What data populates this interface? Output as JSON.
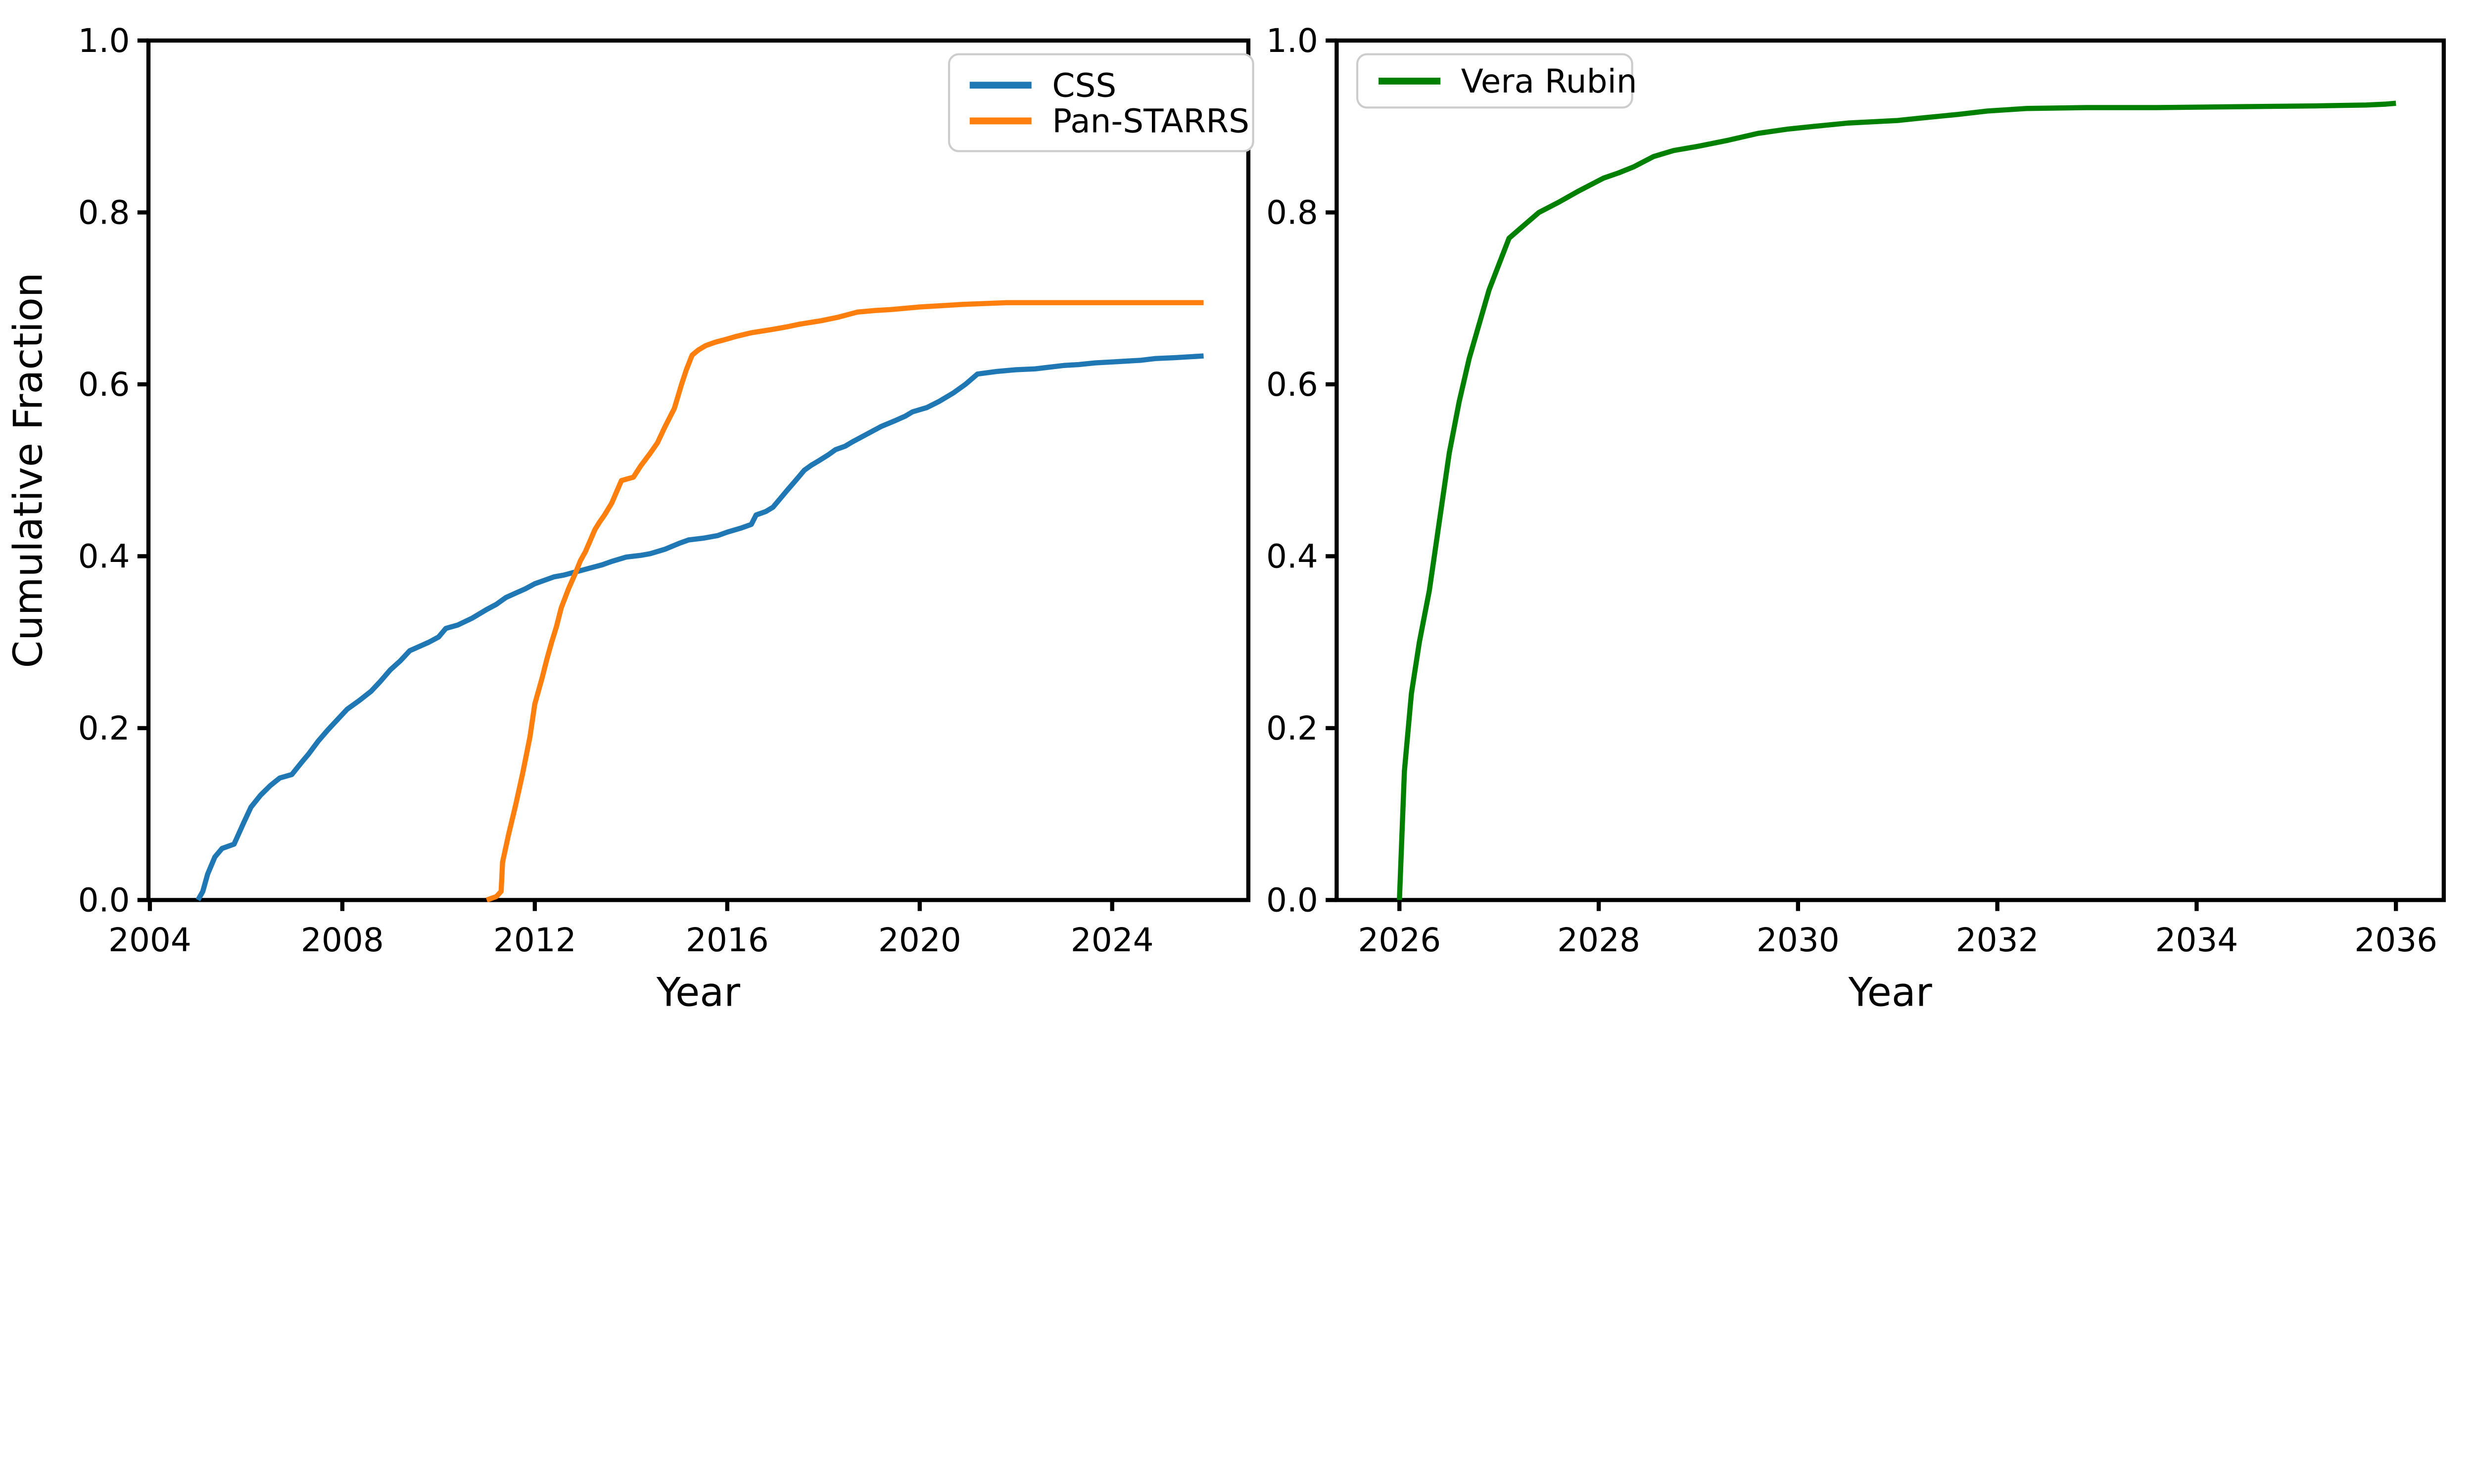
{
  "figure": {
    "background": "#ffffff",
    "description": "Two-panel cumulative fraction versus year line chart"
  },
  "chart_data": [
    {
      "type": "line",
      "panel": "left",
      "title": "",
      "xlabel": "Year",
      "ylabel": "Cumulative Fraction",
      "xlim": [
        2003.97,
        2026.83
      ],
      "ylim": [
        0.0,
        1.0
      ],
      "x_ticks": [
        2004,
        2008,
        2012,
        2016,
        2020,
        2024
      ],
      "y_ticks": [
        0.0,
        0.2,
        0.4,
        0.6,
        0.8,
        1.0
      ],
      "y_tick_labels": [
        "0.0",
        "0.2",
        "0.4",
        "0.6",
        "0.8",
        "1.0"
      ],
      "grid": false,
      "legend": {
        "position": "upper right",
        "entries": [
          {
            "label": "CSS",
            "color": "#1f77b4"
          },
          {
            "label": "Pan-STARRS",
            "color": "#ff7f0e"
          }
        ]
      },
      "series": [
        {
          "name": "CSS",
          "color": "#1f77b4",
          "points": [
            [
              2005.0,
              0.0
            ],
            [
              2005.1,
              0.01
            ],
            [
              2005.2,
              0.03
            ],
            [
              2005.35,
              0.05
            ],
            [
              2005.5,
              0.06
            ],
            [
              2005.75,
              0.065
            ],
            [
              2005.95,
              0.09
            ],
            [
              2006.1,
              0.108
            ],
            [
              2006.3,
              0.122
            ],
            [
              2006.5,
              0.133
            ],
            [
              2006.7,
              0.142
            ],
            [
              2006.95,
              0.146
            ],
            [
              2007.15,
              0.16
            ],
            [
              2007.3,
              0.17
            ],
            [
              2007.5,
              0.185
            ],
            [
              2007.7,
              0.198
            ],
            [
              2007.9,
              0.21
            ],
            [
              2008.1,
              0.222
            ],
            [
              2008.35,
              0.232
            ],
            [
              2008.6,
              0.243
            ],
            [
              2008.8,
              0.255
            ],
            [
              2009.0,
              0.268
            ],
            [
              2009.2,
              0.278
            ],
            [
              2009.4,
              0.29
            ],
            [
              2009.6,
              0.295
            ],
            [
              2009.8,
              0.3
            ],
            [
              2010.0,
              0.306
            ],
            [
              2010.15,
              0.316
            ],
            [
              2010.4,
              0.32
            ],
            [
              2010.7,
              0.328
            ],
            [
              2011.0,
              0.338
            ],
            [
              2011.2,
              0.344
            ],
            [
              2011.4,
              0.352
            ],
            [
              2011.6,
              0.357
            ],
            [
              2011.8,
              0.362
            ],
            [
              2012.0,
              0.368
            ],
            [
              2012.2,
              0.372
            ],
            [
              2012.4,
              0.376
            ],
            [
              2012.6,
              0.378
            ],
            [
              2012.8,
              0.381
            ],
            [
              2013.0,
              0.384
            ],
            [
              2013.2,
              0.387
            ],
            [
              2013.4,
              0.39
            ],
            [
              2013.6,
              0.394
            ],
            [
              2013.9,
              0.399
            ],
            [
              2014.2,
              0.401
            ],
            [
              2014.4,
              0.403
            ],
            [
              2014.7,
              0.408
            ],
            [
              2015.0,
              0.415
            ],
            [
              2015.2,
              0.419
            ],
            [
              2015.5,
              0.421
            ],
            [
              2015.8,
              0.424
            ],
            [
              2016.0,
              0.428
            ],
            [
              2016.3,
              0.433
            ],
            [
              2016.5,
              0.437
            ],
            [
              2016.6,
              0.448
            ],
            [
              2016.8,
              0.452
            ],
            [
              2016.95,
              0.457
            ],
            [
              2017.1,
              0.467
            ],
            [
              2017.25,
              0.477
            ],
            [
              2017.45,
              0.49
            ],
            [
              2017.6,
              0.5
            ],
            [
              2017.75,
              0.506
            ],
            [
              2017.9,
              0.511
            ],
            [
              2018.1,
              0.518
            ],
            [
              2018.25,
              0.524
            ],
            [
              2018.45,
              0.528
            ],
            [
              2018.6,
              0.533
            ],
            [
              2018.9,
              0.542
            ],
            [
              2019.2,
              0.551
            ],
            [
              2019.5,
              0.558
            ],
            [
              2019.7,
              0.563
            ],
            [
              2019.85,
              0.568
            ],
            [
              2020.15,
              0.573
            ],
            [
              2020.4,
              0.58
            ],
            [
              2020.7,
              0.59
            ],
            [
              2020.95,
              0.6
            ],
            [
              2021.2,
              0.612
            ],
            [
              2021.6,
              0.615
            ],
            [
              2022.0,
              0.617
            ],
            [
              2022.4,
              0.618
            ],
            [
              2022.7,
              0.62
            ],
            [
              2023.0,
              0.622
            ],
            [
              2023.3,
              0.623
            ],
            [
              2023.65,
              0.625
            ],
            [
              2024.0,
              0.626
            ],
            [
              2024.3,
              0.627
            ],
            [
              2024.6,
              0.628
            ],
            [
              2024.9,
              0.63
            ],
            [
              2025.3,
              0.631
            ],
            [
              2025.9,
              0.633
            ]
          ]
        },
        {
          "name": "Pan-STARRS",
          "color": "#ff7f0e",
          "points": [
            [
              2011.0,
              0.0
            ],
            [
              2011.2,
              0.004
            ],
            [
              2011.3,
              0.01
            ],
            [
              2011.33,
              0.044
            ],
            [
              2011.45,
              0.075
            ],
            [
              2011.6,
              0.11
            ],
            [
              2011.75,
              0.148
            ],
            [
              2011.9,
              0.19
            ],
            [
              2012.0,
              0.228
            ],
            [
              2012.15,
              0.258
            ],
            [
              2012.25,
              0.28
            ],
            [
              2012.35,
              0.3
            ],
            [
              2012.45,
              0.318
            ],
            [
              2012.55,
              0.34
            ],
            [
              2012.7,
              0.362
            ],
            [
              2012.85,
              0.381
            ],
            [
              2012.95,
              0.395
            ],
            [
              2013.05,
              0.405
            ],
            [
              2013.15,
              0.418
            ],
            [
              2013.25,
              0.431
            ],
            [
              2013.35,
              0.44
            ],
            [
              2013.45,
              0.448
            ],
            [
              2013.6,
              0.462
            ],
            [
              2013.7,
              0.475
            ],
            [
              2013.8,
              0.488
            ],
            [
              2014.05,
              0.492
            ],
            [
              2014.2,
              0.505
            ],
            [
              2014.4,
              0.52
            ],
            [
              2014.55,
              0.532
            ],
            [
              2014.7,
              0.55
            ],
            [
              2014.9,
              0.572
            ],
            [
              2015.05,
              0.6
            ],
            [
              2015.15,
              0.617
            ],
            [
              2015.27,
              0.634
            ],
            [
              2015.4,
              0.64
            ],
            [
              2015.55,
              0.645
            ],
            [
              2015.75,
              0.649
            ],
            [
              2015.95,
              0.652
            ],
            [
              2016.2,
              0.656
            ],
            [
              2016.5,
              0.66
            ],
            [
              2016.95,
              0.664
            ],
            [
              2017.25,
              0.667
            ],
            [
              2017.5,
              0.67
            ],
            [
              2017.95,
              0.674
            ],
            [
              2018.3,
              0.678
            ],
            [
              2018.7,
              0.684
            ],
            [
              2019.1,
              0.686
            ],
            [
              2019.4,
              0.687
            ],
            [
              2020.0,
              0.69
            ],
            [
              2020.9,
              0.693
            ],
            [
              2021.8,
              0.695
            ],
            [
              2023.0,
              0.695
            ],
            [
              2024.5,
              0.695
            ],
            [
              2025.9,
              0.695
            ]
          ]
        }
      ]
    },
    {
      "type": "line",
      "panel": "right",
      "title": "",
      "xlabel": "Year",
      "ylabel": "",
      "xlim": [
        2025.37,
        2036.48
      ],
      "ylim": [
        0.0,
        1.0
      ],
      "x_ticks": [
        2026,
        2028,
        2030,
        2032,
        2034,
        2036
      ],
      "y_ticks": [
        0.0,
        0.2,
        0.4,
        0.6,
        0.8,
        1.0
      ],
      "y_tick_labels": [
        "0.0",
        "0.2",
        "0.4",
        "0.6",
        "0.8",
        "1.0"
      ],
      "grid": false,
      "legend": {
        "position": "upper left",
        "entries": [
          {
            "label": "Vera Rubin",
            "color": "#008000"
          }
        ]
      },
      "series": [
        {
          "name": "Vera Rubin",
          "color": "#008000",
          "points": [
            [
              2026.0,
              0.0
            ],
            [
              2026.05,
              0.15
            ],
            [
              2026.12,
              0.24
            ],
            [
              2026.2,
              0.3
            ],
            [
              2026.3,
              0.36
            ],
            [
              2026.4,
              0.44
            ],
            [
              2026.5,
              0.52
            ],
            [
              2026.6,
              0.58
            ],
            [
              2026.7,
              0.63
            ],
            [
              2026.8,
              0.67
            ],
            [
              2026.9,
              0.71
            ],
            [
              2027.0,
              0.74
            ],
            [
              2027.1,
              0.77
            ],
            [
              2027.25,
              0.785
            ],
            [
              2027.4,
              0.8
            ],
            [
              2027.6,
              0.812
            ],
            [
              2027.8,
              0.825
            ],
            [
              2028.05,
              0.84
            ],
            [
              2028.2,
              0.846
            ],
            [
              2028.35,
              0.853
            ],
            [
              2028.55,
              0.865
            ],
            [
              2028.75,
              0.872
            ],
            [
              2029.0,
              0.877
            ],
            [
              2029.3,
              0.884
            ],
            [
              2029.6,
              0.892
            ],
            [
              2029.9,
              0.897
            ],
            [
              2030.15,
              0.9
            ],
            [
              2030.5,
              0.904
            ],
            [
              2031.0,
              0.907
            ],
            [
              2031.25,
              0.91
            ],
            [
              2031.6,
              0.914
            ],
            [
              2031.9,
              0.918
            ],
            [
              2032.3,
              0.921
            ],
            [
              2032.9,
              0.922
            ],
            [
              2033.6,
              0.922
            ],
            [
              2034.4,
              0.923
            ],
            [
              2035.2,
              0.924
            ],
            [
              2035.7,
              0.925
            ],
            [
              2035.9,
              0.926
            ],
            [
              2036.0,
              0.927
            ]
          ]
        }
      ]
    }
  ]
}
